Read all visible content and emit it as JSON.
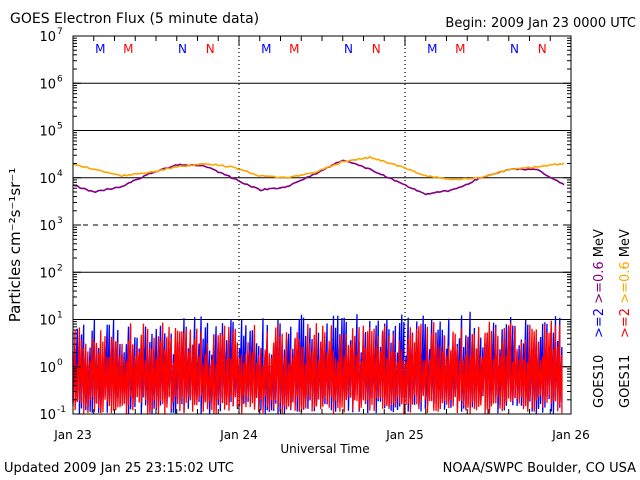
{
  "header": {
    "title": "GOES Electron Flux (5 minute data)",
    "begin": "Begin: 2009 Jan 23 0000 UTC"
  },
  "footer": {
    "updated": "Updated 2009 Jan 25 23:15:02 UTC",
    "credit": "NOAA/SWPC Boulder, CO USA"
  },
  "colors": {
    "goes10_gt2": "#0000ff",
    "goes10_gt06": "#800080",
    "goes11_gt2": "#ff0000",
    "goes11_gt06": "#ffa500"
  },
  "chart_data": {
    "type": "line",
    "title": "GOES Electron Flux (5 minute data)",
    "xlabel": "Universal Time",
    "ylabel": "Particles cm⁻²s⁻¹sr⁻¹",
    "yscale": "log",
    "ylim": [
      0.1,
      10000000
    ],
    "y_ticks": [
      {
        "base": "10",
        "exp": "-1",
        "value": 0.1
      },
      {
        "base": "10",
        "exp": "0",
        "value": 1
      },
      {
        "base": "10",
        "exp": "1",
        "value": 10
      },
      {
        "base": "10",
        "exp": "2",
        "value": 100
      },
      {
        "base": "10",
        "exp": "3",
        "value": 1000
      },
      {
        "base": "10",
        "exp": "4",
        "value": 10000
      },
      {
        "base": "10",
        "exp": "5",
        "value": 100000
      },
      {
        "base": "10",
        "exp": "6",
        "value": 1000000
      },
      {
        "base": "10",
        "exp": "7",
        "value": 10000000
      }
    ],
    "xlim": [
      "2009-01-23T00:00",
      "2009-01-26T00:00"
    ],
    "x_ticks": [
      {
        "label": "Jan 23",
        "value": "2009-01-23T00:00"
      },
      {
        "label": "Jan 24",
        "value": "2009-01-24T00:00"
      },
      {
        "label": "Jan 25",
        "value": "2009-01-25T00:00"
      },
      {
        "label": "Jan 26",
        "value": "2009-01-26T00:00"
      }
    ],
    "reference_lines": [
      {
        "value": 1000,
        "style": "dashed"
      }
    ],
    "noon_midnight_markers": [
      {
        "label": "M",
        "color": "#0000ff",
        "time": "2009-01-23T03:57"
      },
      {
        "label": "M",
        "color": "#ff0000",
        "time": "2009-01-23T08:00"
      },
      {
        "label": "N",
        "color": "#0000ff",
        "time": "2009-01-23T15:50"
      },
      {
        "label": "N",
        "color": "#ff0000",
        "time": "2009-01-23T19:50"
      },
      {
        "label": "M",
        "color": "#0000ff",
        "time": "2009-01-24T03:57"
      },
      {
        "label": "M",
        "color": "#ff0000",
        "time": "2009-01-24T08:00"
      },
      {
        "label": "N",
        "color": "#0000ff",
        "time": "2009-01-24T15:50"
      },
      {
        "label": "N",
        "color": "#ff0000",
        "time": "2009-01-24T19:50"
      },
      {
        "label": "M",
        "color": "#0000ff",
        "time": "2009-01-25T03:57"
      },
      {
        "label": "M",
        "color": "#ff0000",
        "time": "2009-01-25T08:00"
      },
      {
        "label": "N",
        "color": "#0000ff",
        "time": "2009-01-25T15:50"
      },
      {
        "label": "N",
        "color": "#ff0000",
        "time": "2009-01-25T19:50"
      }
    ],
    "legend": {
      "placement": "right",
      "groups": [
        {
          "satellite": "GOES10",
          "entries": [
            {
              "label": ">=2",
              "color": "#0000ff"
            },
            {
              "label": ">=0.6",
              "color": "#800080"
            },
            {
              "label": "MeV",
              "color": "#000000"
            }
          ]
        },
        {
          "satellite": "GOES11",
          "entries": [
            {
              "label": ">=2",
              "color": "#ff0000"
            },
            {
              "label": ">=0.6",
              "color": "#ffa500"
            },
            {
              "label": "MeV",
              "color": "#000000"
            }
          ]
        }
      ]
    },
    "series": [
      {
        "name": "GOES10 >=0.6 MeV",
        "color": "#800080",
        "x": [
          "2009-01-23T00:00",
          "2009-01-23T03:00",
          "2009-01-23T07:00",
          "2009-01-23T11:00",
          "2009-01-23T15:00",
          "2009-01-23T19:00",
          "2009-01-23T23:00",
          "2009-01-24T03:00",
          "2009-01-24T07:00",
          "2009-01-24T11:00",
          "2009-01-24T15:00",
          "2009-01-24T19:00",
          "2009-01-24T23:00",
          "2009-01-25T03:00",
          "2009-01-25T07:00",
          "2009-01-25T11:00",
          "2009-01-25T15:00",
          "2009-01-25T19:00",
          "2009-01-25T23:00"
        ],
        "y": [
          7000,
          5000,
          6500,
          12000,
          19000,
          18000,
          10000,
          5500,
          6500,
          12000,
          24000,
          15000,
          8000,
          4500,
          5500,
          10000,
          15000,
          15000,
          7000
        ]
      },
      {
        "name": "GOES11 >=0.6 MeV",
        "color": "#ffa500",
        "x": [
          "2009-01-23T00:00",
          "2009-01-23T03:00",
          "2009-01-23T07:00",
          "2009-01-23T11:00",
          "2009-01-23T15:00",
          "2009-01-23T19:00",
          "2009-01-23T23:00",
          "2009-01-24T03:00",
          "2009-01-24T07:00",
          "2009-01-24T11:00",
          "2009-01-24T15:00",
          "2009-01-24T19:00",
          "2009-01-24T23:00",
          "2009-01-25T03:00",
          "2009-01-25T07:00",
          "2009-01-25T11:00",
          "2009-01-25T15:00",
          "2009-01-25T19:00",
          "2009-01-25T23:00"
        ],
        "y": [
          20000,
          15000,
          11000,
          13000,
          17000,
          20000,
          17000,
          11000,
          10000,
          13000,
          22000,
          27000,
          18000,
          11000,
          9000,
          10000,
          15000,
          17000,
          20000
        ]
      },
      {
        "name": "GOES10 >=2 MeV",
        "color": "#0000ff",
        "style": "noisy-spikes",
        "x": [
          "2009-01-23T00:00",
          "2009-01-23T12:00",
          "2009-01-24T00:00",
          "2009-01-24T12:00",
          "2009-01-25T00:00",
          "2009-01-25T12:00",
          "2009-01-25T23:00"
        ],
        "y": [
          3,
          3.5,
          3,
          4,
          3.5,
          4,
          3.5
        ]
      },
      {
        "name": "GOES11 >=2 MeV",
        "color": "#ff0000",
        "style": "noisy-spikes",
        "x": [
          "2009-01-23T00:00",
          "2009-01-23T12:00",
          "2009-01-24T00:00",
          "2009-01-24T12:00",
          "2009-01-25T00:00",
          "2009-01-25T12:00",
          "2009-01-25T23:00"
        ],
        "y": [
          2,
          2.5,
          2,
          2.5,
          2.5,
          2.5,
          2.5
        ]
      }
    ]
  }
}
